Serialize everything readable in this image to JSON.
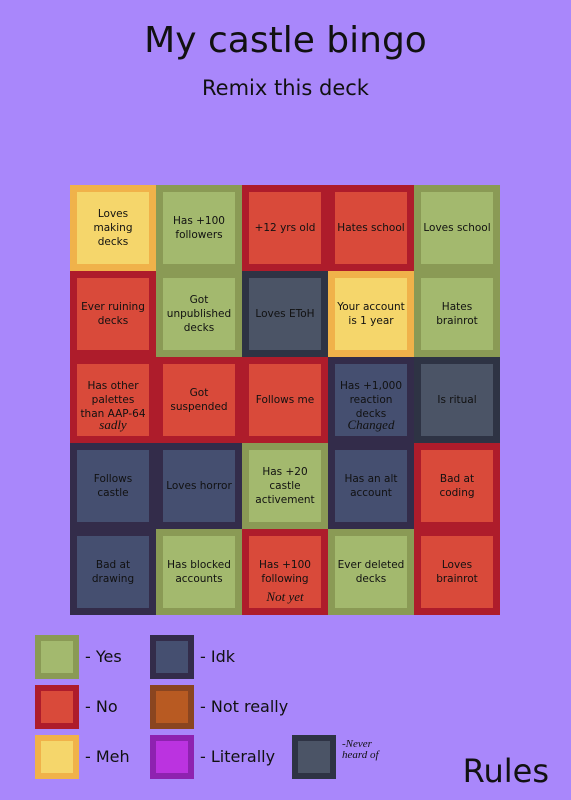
{
  "header": {
    "title": "My castle bingo",
    "subtitle": "Remix this deck"
  },
  "board": {
    "cells": [
      {
        "text": "Loves making decks",
        "color": "#f5d66b",
        "border": "#f0b24a"
      },
      {
        "text": "Has +100 followers",
        "color": "#a3b96e",
        "border": "#8a9a55"
      },
      {
        "text": "+12 yrs old",
        "color": "#d94a3a",
        "border": "#ae1c2b"
      },
      {
        "text": "Hates school",
        "color": "#d94a3a",
        "border": "#ae1c2b"
      },
      {
        "text": "Loves school",
        "color": "#a3b96e",
        "border": "#8a9a55"
      },
      {
        "text": "Ever ruining decks",
        "color": "#d94a3a",
        "border": "#ae1c2b"
      },
      {
        "text": "Got unpublished decks",
        "color": "#a3b96e",
        "border": "#8a9a55"
      },
      {
        "text": "Loves EToH",
        "color": "#4b5466",
        "border": "#2e3344"
      },
      {
        "text": "Your account is 1 year",
        "color": "#f5d66b",
        "border": "#f0b24a"
      },
      {
        "text": "Hates brainrot",
        "color": "#a3b96e",
        "border": "#8a9a55"
      },
      {
        "text": "Has other palettes than AAP-64",
        "note": "sadly",
        "color": "#d94a3a",
        "border": "#ae1c2b"
      },
      {
        "text": "Got suspended",
        "color": "#d94a3a",
        "border": "#ae1c2b"
      },
      {
        "text": "Follows me",
        "color": "#d94a3a",
        "border": "#ae1c2b"
      },
      {
        "text": "Has +1,000 reaction decks",
        "note": "Changed",
        "color": "#454f70",
        "border": "#332c4a"
      },
      {
        "text": "Is ritual",
        "color": "#4b5466",
        "border": "#2e3344"
      },
      {
        "text": "Follows castle",
        "color": "#454f70",
        "border": "#332c4a"
      },
      {
        "text": "Loves horror",
        "color": "#454f70",
        "border": "#332c4a"
      },
      {
        "text": "Has +20 castle activement",
        "color": "#a3b96e",
        "border": "#8a9a55"
      },
      {
        "text": "Has an alt account",
        "color": "#454f70",
        "border": "#332c4a"
      },
      {
        "text": "Bad at coding",
        "color": "#d94a3a",
        "border": "#ae1c2b"
      },
      {
        "text": "Bad at drawing",
        "color": "#454f70",
        "border": "#332c4a"
      },
      {
        "text": "Has blocked accounts",
        "color": "#a3b96e",
        "border": "#8a9a55"
      },
      {
        "text": "Has +100 following",
        "note": "Not yet",
        "color": "#d94a3a",
        "border": "#ae1c2b"
      },
      {
        "text": "Ever deleted decks",
        "color": "#a3b96e",
        "border": "#8a9a55"
      },
      {
        "text": "Loves brainrot",
        "color": "#d94a3a",
        "border": "#ae1c2b"
      }
    ]
  },
  "legend": {
    "items": [
      {
        "label": "- Yes",
        "color": "#a3b96e",
        "border": "#8a9a55"
      },
      {
        "label": "- Idk",
        "color": "#454f70",
        "border": "#332c4a"
      },
      {
        "label": "- No",
        "color": "#d94a3a",
        "border": "#ae1c2b"
      },
      {
        "label": "- Not really",
        "color": "#b85a22",
        "border": "#8a4520"
      },
      {
        "label": "- Meh",
        "color": "#f5d66b",
        "border": "#f0b24a"
      },
      {
        "label": "- Literally",
        "color": "#bb33e0",
        "border": "#8e22b0"
      },
      {
        "label": "-Never heard of",
        "color": "#4b5466",
        "border": "#2e3344",
        "handwritten": true
      }
    ]
  },
  "footer": {
    "button": "Rules"
  }
}
